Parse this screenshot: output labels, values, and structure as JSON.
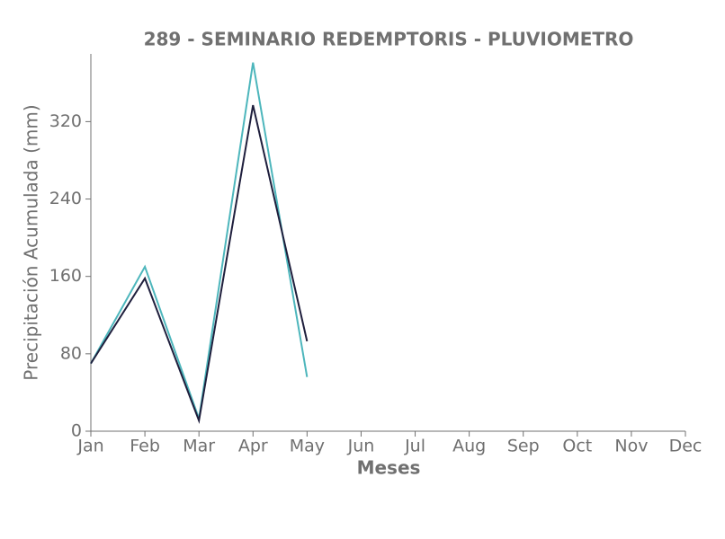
{
  "chart_data": {
    "type": "line",
    "title": "289 - SEMINARIO REDEMPTORIS - PLUVIOMETRO",
    "x_label": "Meses",
    "y_label": "Precipitación Acumulada (mm)",
    "categories": [
      "Jan",
      "Feb",
      "Mar",
      "Apr",
      "May",
      "Jun",
      "Jul",
      "Aug",
      "Sep",
      "Oct",
      "Nov",
      "Dec"
    ],
    "series": [
      {
        "color": "#4db6bc",
        "values": [
          70,
          170,
          13,
          381,
          56,
          null,
          null,
          null,
          null,
          null,
          null,
          null
        ]
      },
      {
        "color": "#1f1f3d",
        "values": [
          70,
          158,
          11,
          337,
          93,
          null,
          null,
          null,
          null,
          null,
          null,
          null
        ]
      }
    ],
    "ylim": [
      0,
      390
    ],
    "yticks": [
      0,
      80,
      160,
      240,
      320
    ],
    "grid": false
  }
}
